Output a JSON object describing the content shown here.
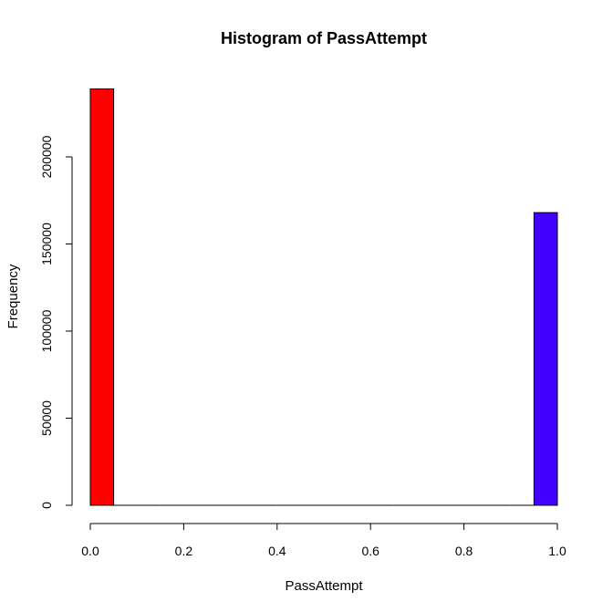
{
  "chart_data": {
    "type": "bar",
    "title": "Histogram of PassAttempt",
    "xlabel": "PassAttempt",
    "ylabel": "Frequency",
    "xlim": [
      0,
      1
    ],
    "ylim": [
      0,
      240000
    ],
    "x_ticks": [
      {
        "value": 0.0,
        "label": "0.0"
      },
      {
        "value": 0.2,
        "label": "0.2"
      },
      {
        "value": 0.4,
        "label": "0.4"
      },
      {
        "value": 0.6,
        "label": "0.6"
      },
      {
        "value": 0.8,
        "label": "0.8"
      },
      {
        "value": 1.0,
        "label": "1.0"
      }
    ],
    "y_ticks": [
      {
        "value": 0,
        "label": "0"
      },
      {
        "value": 50000,
        "label": "50000"
      },
      {
        "value": 100000,
        "label": "100000"
      },
      {
        "value": 150000,
        "label": "150000"
      },
      {
        "value": 200000,
        "label": "200000"
      }
    ],
    "bins": [
      {
        "x0": 0.0,
        "x1": 0.05,
        "count": 239000
      },
      {
        "x0": 0.05,
        "x1": 0.1,
        "count": 0
      },
      {
        "x0": 0.1,
        "x1": 0.15,
        "count": 0
      },
      {
        "x0": 0.15,
        "x1": 0.2,
        "count": 0
      },
      {
        "x0": 0.2,
        "x1": 0.25,
        "count": 0
      },
      {
        "x0": 0.25,
        "x1": 0.3,
        "count": 0
      },
      {
        "x0": 0.3,
        "x1": 0.35,
        "count": 0
      },
      {
        "x0": 0.35,
        "x1": 0.4,
        "count": 0
      },
      {
        "x0": 0.4,
        "x1": 0.45,
        "count": 0
      },
      {
        "x0": 0.45,
        "x1": 0.5,
        "count": 0
      },
      {
        "x0": 0.5,
        "x1": 0.55,
        "count": 0
      },
      {
        "x0": 0.55,
        "x1": 0.6,
        "count": 0
      },
      {
        "x0": 0.6,
        "x1": 0.65,
        "count": 0
      },
      {
        "x0": 0.65,
        "x1": 0.7,
        "count": 0
      },
      {
        "x0": 0.7,
        "x1": 0.75,
        "count": 0
      },
      {
        "x0": 0.75,
        "x1": 0.8,
        "count": 0
      },
      {
        "x0": 0.8,
        "x1": 0.85,
        "count": 0
      },
      {
        "x0": 0.85,
        "x1": 0.9,
        "count": 0
      },
      {
        "x0": 0.9,
        "x1": 0.95,
        "count": 0
      },
      {
        "x0": 0.95,
        "x1": 1.0,
        "count": 168000
      }
    ],
    "bar_colors": [
      "#ff0000",
      "#4400ff"
    ],
    "grid": false,
    "legend": "none"
  }
}
